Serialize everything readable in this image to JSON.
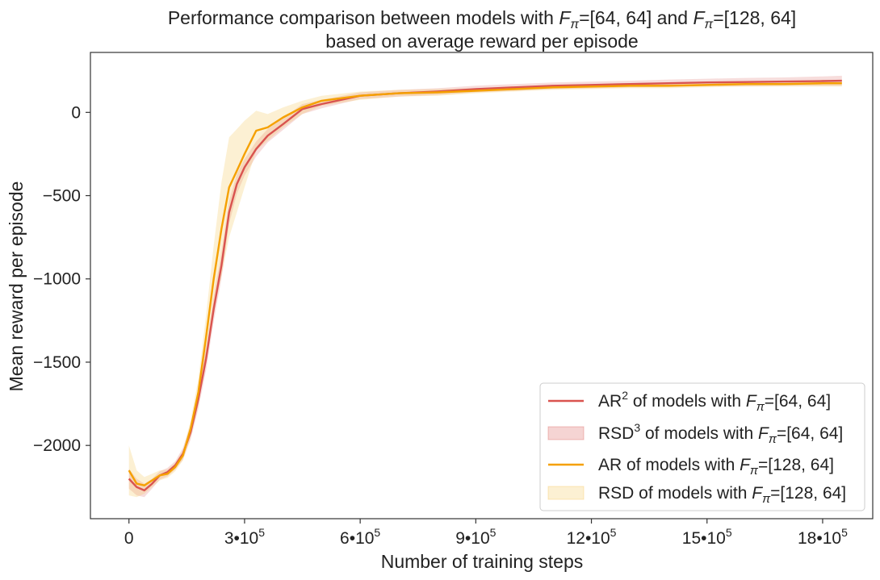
{
  "chart_data": {
    "type": "line",
    "title": {
      "line1_prefix": "Performance comparison between models with ",
      "line1_middle": " and ",
      "line2": "based on average reward per episode",
      "f_sym": "F",
      "pi_sym": "π",
      "cfg_a": "=[64, 64]",
      "cfg_b": "=[128, 64]"
    },
    "xlabel": "Number of training steps",
    "ylabel": "Mean reward per episode",
    "xlim": [
      -100000,
      1930000
    ],
    "ylim": [
      -2440,
      360
    ],
    "x_ticks": [
      0,
      300000,
      600000,
      900000,
      1200000,
      1500000,
      1800000
    ],
    "x_tick_labels": [
      {
        "base": "0",
        "exp": ""
      },
      {
        "base": "3•10",
        "exp": "5"
      },
      {
        "base": "6•10",
        "exp": "5"
      },
      {
        "base": "9•10",
        "exp": "5"
      },
      {
        "base": "12•10",
        "exp": "5"
      },
      {
        "base": "15•10",
        "exp": "5"
      },
      {
        "base": "18•10",
        "exp": "5"
      }
    ],
    "y_ticks": [
      0,
      -500,
      -1000,
      -1500,
      -2000
    ],
    "y_tick_labels": [
      "0",
      "−500",
      "−1000",
      "−1500",
      "−2000"
    ],
    "legend_position": "lower-right",
    "series": [
      {
        "name": "AR of models with F=[64, 64]",
        "color": "#d9534f",
        "band_color": "#d9534f",
        "band_opacity": 0.2,
        "x": [
          0,
          20000,
          40000,
          60000,
          80000,
          100000,
          120000,
          140000,
          160000,
          180000,
          200000,
          220000,
          240000,
          260000,
          280000,
          300000,
          330000,
          360000,
          400000,
          450000,
          500000,
          600000,
          700000,
          800000,
          900000,
          1000000,
          1100000,
          1200000,
          1300000,
          1400000,
          1500000,
          1600000,
          1700000,
          1800000,
          1850000
        ],
        "y": [
          -2200,
          -2250,
          -2270,
          -2230,
          -2180,
          -2160,
          -2120,
          -2050,
          -1920,
          -1720,
          -1480,
          -1180,
          -920,
          -600,
          -430,
          -330,
          -220,
          -140,
          -70,
          20,
          50,
          100,
          115,
          125,
          140,
          150,
          160,
          165,
          170,
          175,
          180,
          182,
          185,
          188,
          190
        ],
        "sd": [
          60,
          50,
          40,
          30,
          25,
          25,
          25,
          35,
          45,
          60,
          70,
          75,
          80,
          70,
          60,
          50,
          45,
          40,
          35,
          30,
          25,
          20,
          20,
          20,
          20,
          20,
          20,
          20,
          20,
          22,
          22,
          25,
          25,
          28,
          30
        ]
      },
      {
        "name": "AR of models with F=[128, 64]",
        "color": "#f5a000",
        "band_color": "#f5c350",
        "band_opacity": 0.25,
        "x": [
          0,
          20000,
          40000,
          60000,
          80000,
          100000,
          120000,
          140000,
          160000,
          180000,
          200000,
          220000,
          240000,
          260000,
          280000,
          300000,
          330000,
          360000,
          400000,
          450000,
          500000,
          600000,
          700000,
          800000,
          900000,
          1000000,
          1100000,
          1200000,
          1300000,
          1400000,
          1500000,
          1600000,
          1700000,
          1800000,
          1850000
        ],
        "y": [
          -2150,
          -2230,
          -2240,
          -2210,
          -2180,
          -2170,
          -2130,
          -2060,
          -1900,
          -1680,
          -1350,
          -1000,
          -700,
          -450,
          -350,
          -250,
          -110,
          -90,
          -30,
          30,
          70,
          100,
          115,
          120,
          130,
          140,
          150,
          155,
          160,
          160,
          165,
          170,
          170,
          175,
          175
        ],
        "sd": [
          150,
          80,
          50,
          40,
          30,
          25,
          25,
          30,
          50,
          80,
          130,
          200,
          280,
          300,
          250,
          200,
          120,
          80,
          60,
          40,
          30,
          25,
          20,
          20,
          15,
          15,
          15,
          15,
          15,
          15,
          15,
          15,
          15,
          20,
          20
        ]
      }
    ],
    "legend": [
      {
        "kind": "line",
        "color": "#d9534f",
        "prefix": "AR",
        "sup": "2",
        "mid": " of models with ",
        "cfg": "=[64, 64]"
      },
      {
        "kind": "band",
        "color": "#d9534f",
        "prefix": "RSD",
        "sup": "3",
        "mid": " of models with ",
        "cfg": "=[64, 64]"
      },
      {
        "kind": "line",
        "color": "#f5a000",
        "prefix": "AR",
        "sup": "",
        "mid": " of models with ",
        "cfg": "=[128, 64]"
      },
      {
        "kind": "band",
        "color": "#f5c350",
        "prefix": "RSD",
        "sup": "",
        "mid": " of models with ",
        "cfg": "=[128, 64]"
      }
    ]
  }
}
